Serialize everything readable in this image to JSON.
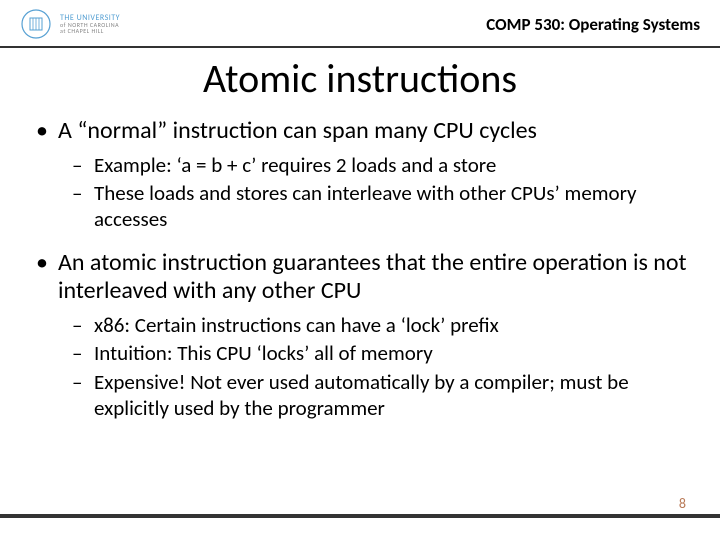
{
  "header": {
    "logo": {
      "line1": "THE UNIVERSITY",
      "line2": "of NORTH CAROLINA",
      "line3": "at CHAPEL HILL",
      "seal_color": "#56a0d3"
    },
    "course": "COMP 530: Operating Systems",
    "rule_color": "#333333"
  },
  "title": "Atomic instructions",
  "bullets": [
    {
      "level": 1,
      "text": "A “normal” instruction can span many CPU cycles"
    },
    {
      "level": 2,
      "text": "Example: ‘a = b + c’ requires 2 loads and a store"
    },
    {
      "level": 2,
      "text": "These loads and stores can interleave with other CPUs’ memory accesses"
    },
    {
      "level": 0
    },
    {
      "level": 1,
      "text": "An atomic instruction guarantees that the entire operation is not interleaved with any other CPU"
    },
    {
      "level": 2,
      "text": "x86: Certain instructions can have a ‘lock’ prefix"
    },
    {
      "level": 2,
      "text": "Intuition: This CPU ‘locks’ all of memory"
    },
    {
      "level": 2,
      "text": "Expensive!  Not ever used automatically by a compiler; must be explicitly used by the programmer"
    }
  ],
  "page_number": "8",
  "colors": {
    "background": "#ffffff",
    "text": "#000000",
    "page_num": "#b97a57",
    "footer_bar": "#333333"
  },
  "fonts": {
    "title_size_pt": 40,
    "l1_size_pt": 24,
    "l2_size_pt": 21,
    "course_size_pt": 17
  }
}
